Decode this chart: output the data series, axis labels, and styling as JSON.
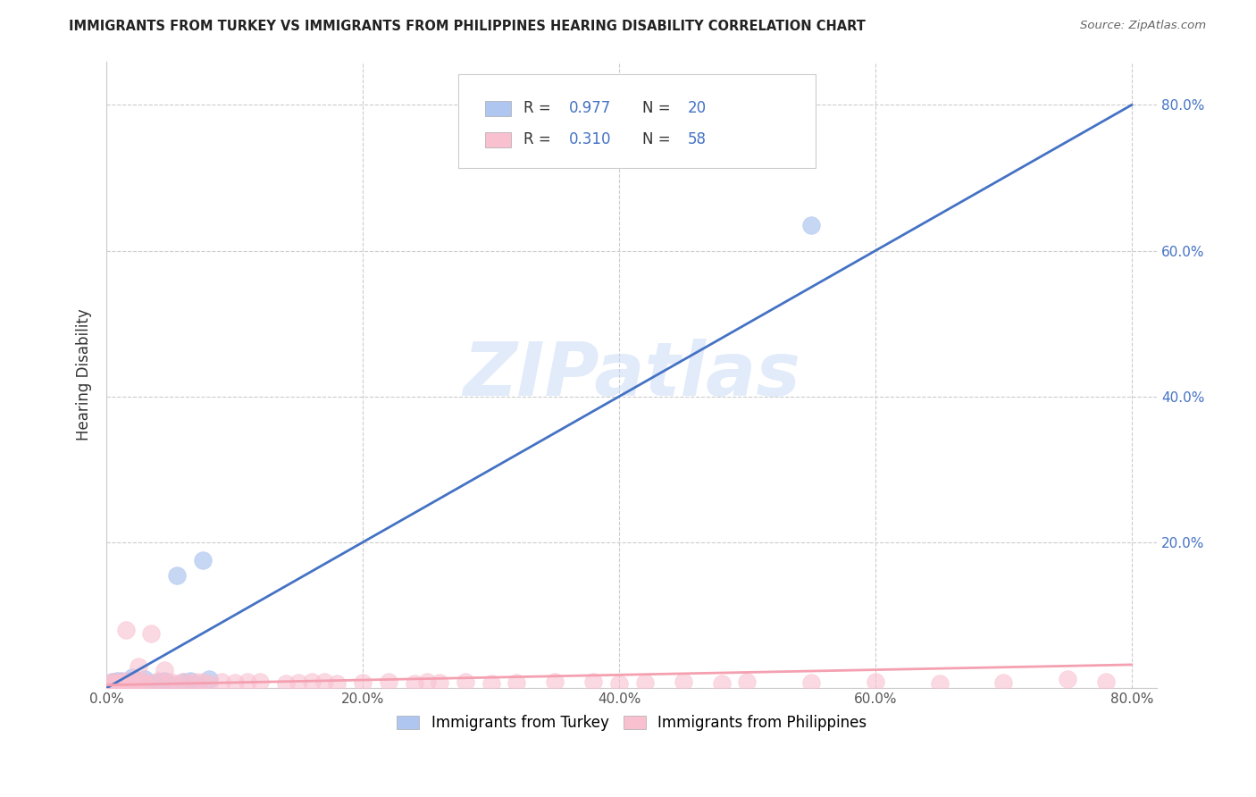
{
  "title": "IMMIGRANTS FROM TURKEY VS IMMIGRANTS FROM PHILIPPINES HEARING DISABILITY CORRELATION CHART",
  "source": "Source: ZipAtlas.com",
  "ylabel": "Hearing Disability",
  "legend_label_blue": "Immigrants from Turkey",
  "legend_label_pink": "Immigrants from Philippines",
  "blue_color": "#AEC6F0",
  "pink_color": "#F9C0D0",
  "blue_line_color": "#4472C4",
  "pink_line_color": "#F4A0B0",
  "text_blue": "#4472C4",
  "text_dark": "#333333",
  "watermark_color": "#C5D8F5",
  "watermark_text": "ZIPatlas",
  "blue_scatter_x": [
    0.005,
    0.008,
    0.01,
    0.012,
    0.015,
    0.018,
    0.02,
    0.025,
    0.03,
    0.035,
    0.04,
    0.045,
    0.05,
    0.055,
    0.06,
    0.065,
    0.07,
    0.075,
    0.08,
    0.55
  ],
  "blue_scatter_y": [
    0.008,
    0.01,
    0.005,
    0.01,
    0.008,
    0.01,
    0.015,
    0.008,
    0.012,
    0.005,
    0.008,
    0.01,
    0.005,
    0.155,
    0.008,
    0.01,
    0.005,
    0.175,
    0.012,
    0.635
  ],
  "pink_scatter_x": [
    0.002,
    0.004,
    0.006,
    0.008,
    0.01,
    0.012,
    0.014,
    0.016,
    0.018,
    0.02,
    0.022,
    0.025,
    0.028,
    0.03,
    0.035,
    0.04,
    0.045,
    0.05,
    0.055,
    0.06,
    0.065,
    0.07,
    0.075,
    0.08,
    0.09,
    0.1,
    0.11,
    0.12,
    0.14,
    0.15,
    0.16,
    0.17,
    0.18,
    0.2,
    0.22,
    0.24,
    0.25,
    0.26,
    0.28,
    0.3,
    0.32,
    0.35,
    0.38,
    0.4,
    0.42,
    0.45,
    0.48,
    0.5,
    0.55,
    0.6,
    0.65,
    0.7,
    0.75,
    0.78,
    0.035,
    0.025,
    0.015,
    0.045
  ],
  "pink_scatter_y": [
    0.005,
    0.008,
    0.006,
    0.009,
    0.007,
    0.008,
    0.006,
    0.01,
    0.008,
    0.007,
    0.006,
    0.01,
    0.007,
    0.008,
    0.006,
    0.01,
    0.007,
    0.008,
    0.006,
    0.009,
    0.007,
    0.008,
    0.009,
    0.006,
    0.008,
    0.007,
    0.009,
    0.008,
    0.006,
    0.007,
    0.008,
    0.009,
    0.006,
    0.007,
    0.008,
    0.006,
    0.009,
    0.007,
    0.008,
    0.006,
    0.007,
    0.009,
    0.008,
    0.006,
    0.007,
    0.008,
    0.006,
    0.009,
    0.007,
    0.008,
    0.006,
    0.007,
    0.012,
    0.008,
    0.075,
    0.03,
    0.08,
    0.025
  ],
  "blue_line_x": [
    0.0,
    0.8
  ],
  "blue_line_y": [
    0.0,
    0.8
  ],
  "pink_line_x": [
    0.0,
    0.8
  ],
  "pink_line_y": [
    0.004,
    0.032
  ],
  "xlim": [
    0.0,
    0.82
  ],
  "ylim": [
    0.0,
    0.86
  ],
  "xticks": [
    0.0,
    0.2,
    0.4,
    0.6,
    0.8
  ],
  "xtick_labels": [
    "0.0%",
    "20.0%",
    "40.0%",
    "60.0%",
    "80.0%"
  ],
  "yticks_right": [
    0.2,
    0.4,
    0.6,
    0.8
  ],
  "ytick_labels_right": [
    "20.0%",
    "40.0%",
    "60.0%",
    "80.0%"
  ]
}
